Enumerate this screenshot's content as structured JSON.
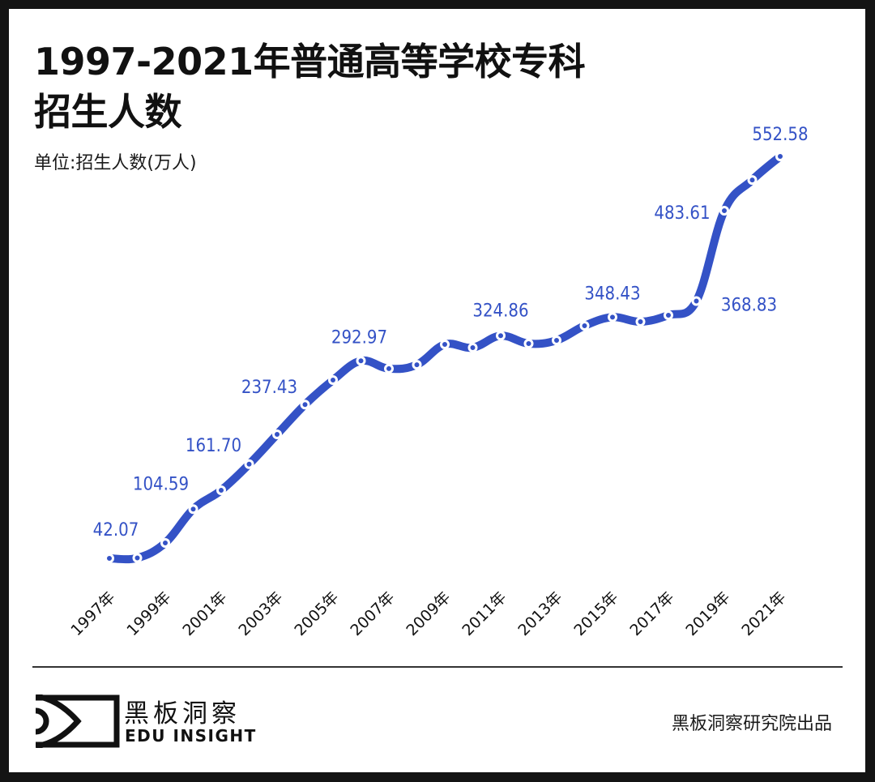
{
  "header": {
    "title_line1": "1997-2021年普通高等学校专科",
    "title_line2": "招生人数",
    "unit": "单位:招生人数(万人)"
  },
  "colors": {
    "line": "#3452c6",
    "label": "#3452c6",
    "frame": "#141414",
    "background": "#ffffff"
  },
  "footer": {
    "logo_cn": "黑板洞察",
    "logo_en": "EDU INSIGHT",
    "credit": "黑板洞察研究院出品"
  },
  "chart_data": {
    "type": "line",
    "title": "1997-2021年普通高等学校专科招生人数",
    "subtitle": "单位:招生人数(万人)",
    "xlabel": "",
    "ylabel": "招生人数(万人)",
    "grid": false,
    "legend": null,
    "x": [
      "1997年",
      "1998年",
      "1999年",
      "2000年",
      "2001年",
      "2002年",
      "2003年",
      "2004年",
      "2005年",
      "2006年",
      "2007年",
      "2008年",
      "2009年",
      "2010年",
      "2011年",
      "2012年",
      "2013年",
      "2014年",
      "2015年",
      "2016年",
      "2017年",
      "2018年",
      "2019年",
      "2020年",
      "2021年"
    ],
    "values": [
      42.07,
      42.6,
      61.7,
      104.59,
      128.5,
      161.7,
      199.6,
      237.43,
      268.5,
      292.97,
      283.0,
      288.0,
      313.8,
      309.7,
      324.86,
      314.8,
      319.0,
      337.5,
      348.43,
      342.6,
      350.9,
      368.83,
      483.61,
      522.6,
      552.58
    ],
    "x_tick_labels": [
      "1997年",
      "1999年",
      "2001年",
      "2003年",
      "2005年",
      "2007年",
      "2009年",
      "2011年",
      "2013年",
      "2015年",
      "2017年",
      "2019年",
      "2021年"
    ],
    "annotations": [
      {
        "x": "1997年",
        "text": "42.07"
      },
      {
        "x": "2000年",
        "text": "104.59"
      },
      {
        "x": "2002年",
        "text": "161.70"
      },
      {
        "x": "2004年",
        "text": "237.43"
      },
      {
        "x": "2006年",
        "text": "292.97"
      },
      {
        "x": "2011年",
        "text": "324.86"
      },
      {
        "x": "2015年",
        "text": "348.43"
      },
      {
        "x": "2018年",
        "text": "368.83"
      },
      {
        "x": "2019年",
        "text": "483.61"
      },
      {
        "x": "2021年",
        "text": "552.58"
      }
    ],
    "ylim": [
      0,
      600
    ]
  }
}
